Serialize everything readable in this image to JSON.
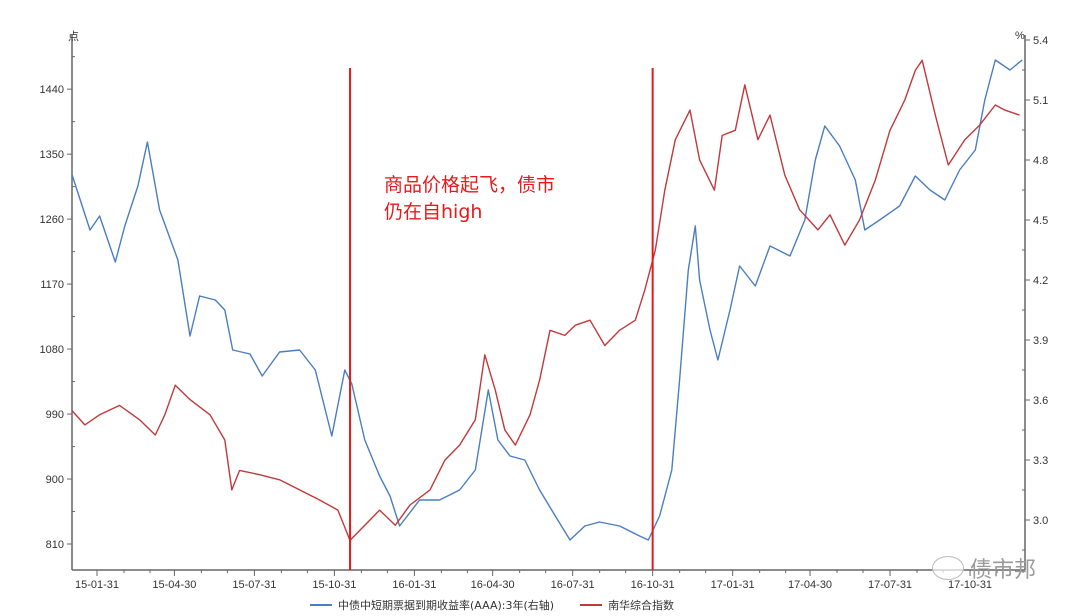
{
  "chart_data": {
    "type": "line",
    "left_axis": {
      "unit": "点",
      "range": [
        774,
        1515
      ],
      "ticks": [
        810,
        900,
        990,
        1080,
        1170,
        1260,
        1350,
        1440
      ]
    },
    "right_axis": {
      "unit": "%",
      "range": [
        2.75,
        5.425
      ],
      "ticks": [
        "3.0",
        "3.3",
        "3.6",
        "3.9",
        "4.2",
        "4.5",
        "4.8",
        "5.1",
        "5.4"
      ]
    },
    "x_range": [
      "2015-01-02",
      "2017-12-31"
    ],
    "x_ticks": [
      "15-01-31",
      "15-04-30",
      "15-07-31",
      "15-10-31",
      "16-01-31",
      "16-04-30",
      "16-07-31",
      "16-10-31",
      "17-01-31",
      "17-04-30",
      "17-07-31",
      "17-10-31"
    ],
    "x_tick_dates": [
      "2015-01-31",
      "2015-04-30",
      "2015-07-31",
      "2015-10-31",
      "2016-01-31",
      "2016-04-30",
      "2016-07-31",
      "2016-10-31",
      "2017-01-31",
      "2017-04-30",
      "2017-07-31",
      "2017-10-31"
    ],
    "grid": false,
    "legend_position": "bottom",
    "series": [
      {
        "name": "中债中短期票据到期收益率(AAA):3年(右轴)",
        "axis": "right",
        "color": "#4a7ebf",
        "points": [
          [
            "2015-01-02",
            4.73
          ],
          [
            "2015-01-23",
            4.45
          ],
          [
            "2015-02-03",
            4.52
          ],
          [
            "2015-02-21",
            4.29
          ],
          [
            "2015-03-04",
            4.47
          ],
          [
            "2015-03-19",
            4.67
          ],
          [
            "2015-03-30",
            4.89
          ],
          [
            "2015-04-13",
            4.55
          ],
          [
            "2015-05-04",
            4.3
          ],
          [
            "2015-05-18",
            3.92
          ],
          [
            "2015-05-29",
            4.12
          ],
          [
            "2015-06-16",
            4.1
          ],
          [
            "2015-06-27",
            4.05
          ],
          [
            "2015-07-06",
            3.85
          ],
          [
            "2015-07-26",
            3.83
          ],
          [
            "2015-08-09",
            3.72
          ],
          [
            "2015-08-29",
            3.84
          ],
          [
            "2015-09-21",
            3.85
          ],
          [
            "2015-10-09",
            3.75
          ],
          [
            "2015-10-28",
            3.42
          ],
          [
            "2015-11-12",
            3.75
          ],
          [
            "2015-11-20",
            3.68
          ],
          [
            "2015-12-05",
            3.4
          ],
          [
            "2015-12-22",
            3.22
          ],
          [
            "2016-01-03",
            3.12
          ],
          [
            "2016-01-14",
            2.97
          ],
          [
            "2016-02-06",
            3.1
          ],
          [
            "2016-02-29",
            3.1
          ],
          [
            "2016-03-23",
            3.15
          ],
          [
            "2016-04-10",
            3.25
          ],
          [
            "2016-04-25",
            3.65
          ],
          [
            "2016-05-06",
            3.4
          ],
          [
            "2016-05-20",
            3.32
          ],
          [
            "2016-06-06",
            3.3
          ],
          [
            "2016-06-23",
            3.15
          ],
          [
            "2016-07-11",
            3.02
          ],
          [
            "2016-07-28",
            2.9
          ],
          [
            "2016-08-14",
            2.97
          ],
          [
            "2016-08-31",
            2.99
          ],
          [
            "2016-09-23",
            2.97
          ],
          [
            "2016-10-16",
            2.92
          ],
          [
            "2016-10-26",
            2.9
          ],
          [
            "2016-11-08",
            3.02
          ],
          [
            "2016-11-22",
            3.25
          ],
          [
            "2016-12-01",
            3.7
          ],
          [
            "2016-12-11",
            4.25
          ],
          [
            "2016-12-19",
            4.47
          ],
          [
            "2016-12-24",
            4.2
          ],
          [
            "2017-01-05",
            3.95
          ],
          [
            "2017-01-14",
            3.8
          ],
          [
            "2017-01-28",
            4.05
          ],
          [
            "2017-02-08",
            4.27
          ],
          [
            "2017-02-26",
            4.17
          ],
          [
            "2017-03-15",
            4.37
          ],
          [
            "2017-04-07",
            4.32
          ],
          [
            "2017-04-24",
            4.5
          ],
          [
            "2017-05-06",
            4.8
          ],
          [
            "2017-05-17",
            4.97
          ],
          [
            "2017-06-03",
            4.87
          ],
          [
            "2017-06-21",
            4.7
          ],
          [
            "2017-07-02",
            4.45
          ],
          [
            "2017-07-19",
            4.5
          ],
          [
            "2017-08-11",
            4.57
          ],
          [
            "2017-08-29",
            4.72
          ],
          [
            "2017-09-15",
            4.65
          ],
          [
            "2017-10-02",
            4.6
          ],
          [
            "2017-10-19",
            4.75
          ],
          [
            "2017-11-06",
            4.85
          ],
          [
            "2017-11-17",
            5.1
          ],
          [
            "2017-11-29",
            5.3
          ],
          [
            "2017-12-16",
            5.25
          ],
          [
            "2017-12-30",
            5.3
          ]
        ]
      },
      {
        "name": "南华综合指数",
        "axis": "left",
        "color": "#c0393b",
        "points": [
          [
            "2015-01-02",
            995
          ],
          [
            "2015-01-17",
            975
          ],
          [
            "2015-02-03",
            989
          ],
          [
            "2015-02-26",
            1002
          ],
          [
            "2015-03-21",
            982
          ],
          [
            "2015-04-08",
            961
          ],
          [
            "2015-04-19",
            989
          ],
          [
            "2015-05-01",
            1030
          ],
          [
            "2015-05-18",
            1010
          ],
          [
            "2015-06-10",
            989
          ],
          [
            "2015-06-27",
            954
          ],
          [
            "2015-07-05",
            885
          ],
          [
            "2015-07-14",
            912
          ],
          [
            "2015-08-06",
            906
          ],
          [
            "2015-08-29",
            899
          ],
          [
            "2015-09-21",
            885
          ],
          [
            "2015-10-14",
            871
          ],
          [
            "2015-11-04",
            857
          ],
          [
            "2015-11-18",
            815
          ],
          [
            "2015-12-05",
            836
          ],
          [
            "2015-12-22",
            857
          ],
          [
            "2016-01-09",
            836
          ],
          [
            "2016-01-26",
            864
          ],
          [
            "2016-02-18",
            885
          ],
          [
            "2016-03-06",
            926
          ],
          [
            "2016-03-23",
            947
          ],
          [
            "2016-04-10",
            982
          ],
          [
            "2016-04-21",
            1072
          ],
          [
            "2016-05-03",
            1023
          ],
          [
            "2016-05-14",
            968
          ],
          [
            "2016-05-26",
            947
          ],
          [
            "2016-06-12",
            989
          ],
          [
            "2016-06-23",
            1037
          ],
          [
            "2016-07-05",
            1106
          ],
          [
            "2016-07-22",
            1099
          ],
          [
            "2016-08-03",
            1113
          ],
          [
            "2016-08-20",
            1120
          ],
          [
            "2016-09-06",
            1085
          ],
          [
            "2016-09-23",
            1106
          ],
          [
            "2016-10-11",
            1120
          ],
          [
            "2016-10-22",
            1162
          ],
          [
            "2016-11-03",
            1217
          ],
          [
            "2016-11-14",
            1300
          ],
          [
            "2016-11-26",
            1370
          ],
          [
            "2016-12-13",
            1411
          ],
          [
            "2016-12-24",
            1342
          ],
          [
            "2017-01-10",
            1300
          ],
          [
            "2017-01-19",
            1376
          ],
          [
            "2017-02-03",
            1383
          ],
          [
            "2017-02-14",
            1446
          ],
          [
            "2017-03-01",
            1370
          ],
          [
            "2017-03-15",
            1404
          ],
          [
            "2017-04-01",
            1321
          ],
          [
            "2017-04-18",
            1273
          ],
          [
            "2017-05-09",
            1245
          ],
          [
            "2017-05-23",
            1266
          ],
          [
            "2017-06-09",
            1224
          ],
          [
            "2017-06-26",
            1259
          ],
          [
            "2017-07-14",
            1314
          ],
          [
            "2017-07-31",
            1383
          ],
          [
            "2017-08-17",
            1425
          ],
          [
            "2017-08-29",
            1466
          ],
          [
            "2017-09-06",
            1480
          ],
          [
            "2017-09-21",
            1404
          ],
          [
            "2017-10-06",
            1335
          ],
          [
            "2017-10-25",
            1370
          ],
          [
            "2017-11-11",
            1390
          ],
          [
            "2017-11-29",
            1418
          ],
          [
            "2017-12-10",
            1411
          ],
          [
            "2017-12-27",
            1404
          ]
        ]
      }
    ],
    "vertical_markers": {
      "dates": [
        "2015-11-18",
        "2016-10-31"
      ],
      "color": "#e8191b"
    },
    "annotation": {
      "line1": "商品价格起飞，债市",
      "line2": "仍在自high",
      "color": "#e8191b"
    }
  },
  "watermark": "债市邦"
}
